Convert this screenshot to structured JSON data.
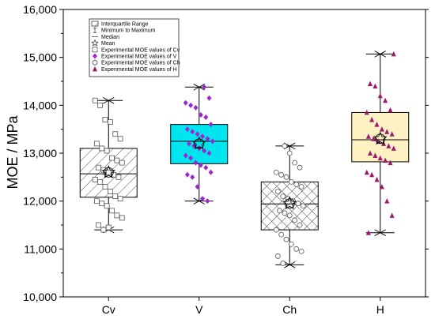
{
  "chart_data": {
    "type": "box",
    "ylabel": "MOE / MPa",
    "xlabel": "",
    "ylim": [
      10000,
      16000
    ],
    "yticks": [
      10000,
      11000,
      12000,
      13000,
      14000,
      15000,
      16000
    ],
    "ytick_labels": [
      "10,000",
      "11,000",
      "12,000",
      "13,000",
      "14,000",
      "15,000",
      "16,000"
    ],
    "categories": [
      "Cv",
      "V",
      "Ch",
      "H"
    ],
    "legend": {
      "position": "top-left",
      "entries": [
        "Interquartile Range",
        "Minimum to Maximum",
        "Median",
        "Mean",
        "Experimental MOE values of Cv",
        "Experimental MOE values of V",
        "Experimental MOE values of Ch",
        "Experimental MOE values of H"
      ]
    },
    "boxes": [
      {
        "category": "Cv",
        "min": 11400,
        "q1": 12080,
        "median": 12570,
        "q3": 13100,
        "max": 14100,
        "mean": 12600,
        "fill": "hatch-diagonal",
        "marker": "square-open",
        "marker_color": "#555555",
        "points": [
          14100,
          14000,
          13700,
          13650,
          13400,
          13300,
          13200,
          13100,
          13050,
          12900,
          12850,
          12800,
          12700,
          12650,
          12600,
          12550,
          12500,
          12450,
          12400,
          12300,
          12200,
          12100,
          12050,
          12000,
          11950,
          11900,
          11800,
          11700,
          11650,
          11500,
          11400,
          11450
        ]
      },
      {
        "category": "V",
        "min": 12000,
        "q1": 12780,
        "median": 13250,
        "q3": 13600,
        "max": 14380,
        "mean": 13200,
        "fill": "#00e5ee",
        "marker": "diamond",
        "marker_color": "#9b27d4",
        "points": [
          14380,
          14150,
          14050,
          14000,
          13950,
          13800,
          13750,
          13600,
          13500,
          13450,
          13400,
          13350,
          13300,
          13250,
          13200,
          13150,
          13100,
          13050,
          13000,
          12950,
          12900,
          12800,
          12750,
          12700,
          12600,
          12550,
          12500,
          12300,
          12050,
          12000
        ]
      },
      {
        "category": "Ch",
        "min": 10670,
        "q1": 11400,
        "median": 11940,
        "q3": 12400,
        "max": 13150,
        "mean": 11950,
        "fill": "hatch-cross",
        "marker": "circle-open",
        "marker_color": "#555555",
        "points": [
          13150,
          13000,
          12800,
          12700,
          12600,
          12550,
          12500,
          12400,
          12350,
          12300,
          12200,
          12100,
          12050,
          12000,
          11950,
          11900,
          11800,
          11750,
          11700,
          11600,
          11500,
          11400,
          11300,
          11200,
          11100,
          11000,
          10950,
          10850,
          10700
        ]
      },
      {
        "category": "H",
        "min": 11340,
        "q1": 12820,
        "median": 13280,
        "q3": 13850,
        "max": 15070,
        "mean": 13300,
        "fill": "#fff2c2",
        "marker": "triangle",
        "marker_color": "#a01770",
        "points": [
          15070,
          14450,
          14400,
          14200,
          14100,
          13900,
          13850,
          13700,
          13600,
          13500,
          13450,
          13400,
          13350,
          13300,
          13250,
          13200,
          13150,
          13100,
          13000,
          12950,
          12900,
          12850,
          12800,
          12600,
          12550,
          12450,
          12300,
          12000,
          11700,
          11340
        ]
      }
    ]
  }
}
